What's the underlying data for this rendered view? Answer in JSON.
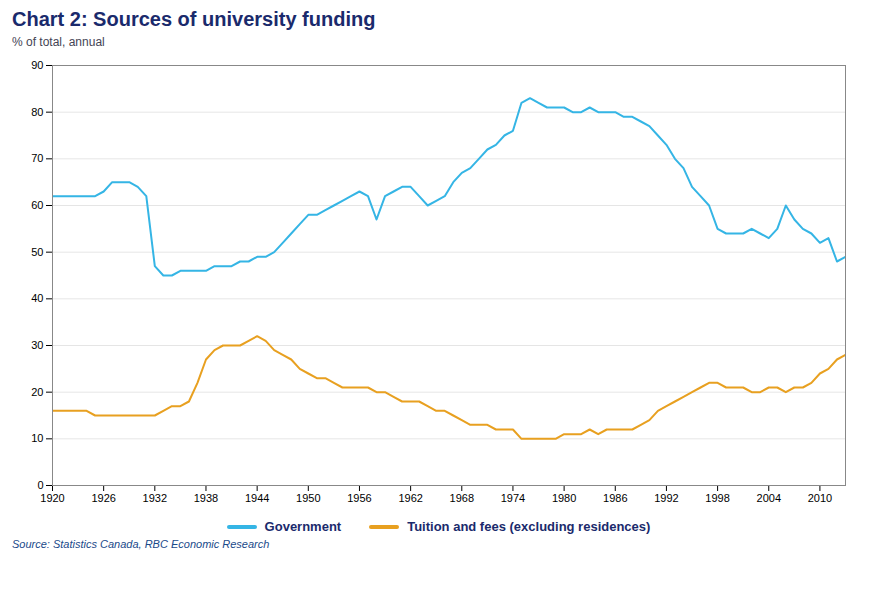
{
  "chart_data": {
    "type": "line",
    "title": "Chart 2: Sources of university funding",
    "subtitle": "% of total, annual",
    "source": "Source: Statistics Canada, RBC Economic Research",
    "x": [
      1920,
      1921,
      1922,
      1923,
      1924,
      1925,
      1926,
      1927,
      1928,
      1929,
      1930,
      1931,
      1932,
      1933,
      1934,
      1935,
      1936,
      1937,
      1938,
      1939,
      1940,
      1941,
      1942,
      1943,
      1944,
      1945,
      1946,
      1947,
      1948,
      1949,
      1950,
      1951,
      1952,
      1953,
      1954,
      1955,
      1956,
      1957,
      1958,
      1959,
      1960,
      1961,
      1962,
      1963,
      1964,
      1965,
      1966,
      1967,
      1968,
      1969,
      1970,
      1971,
      1972,
      1973,
      1974,
      1975,
      1976,
      1977,
      1978,
      1979,
      1980,
      1981,
      1982,
      1983,
      1984,
      1985,
      1986,
      1987,
      1988,
      1989,
      1990,
      1991,
      1992,
      1993,
      1994,
      1995,
      1996,
      1997,
      1998,
      1999,
      2000,
      2001,
      2002,
      2003,
      2004,
      2005,
      2006,
      2007,
      2008,
      2009,
      2010,
      2011,
      2012,
      2013
    ],
    "series": [
      {
        "name": "Government",
        "color": "#35b5e5",
        "values": [
          62,
          62,
          62,
          62,
          62,
          62,
          63,
          65,
          65,
          65,
          64,
          62,
          47,
          45,
          45,
          46,
          46,
          46,
          46,
          47,
          47,
          47,
          48,
          48,
          49,
          49,
          50,
          52,
          54,
          56,
          58,
          58,
          59,
          60,
          61,
          62,
          63,
          62,
          57,
          62,
          63,
          64,
          64,
          62,
          60,
          61,
          62,
          65,
          67,
          68,
          70,
          72,
          73,
          75,
          76,
          82,
          83,
          82,
          81,
          81,
          81,
          80,
          80,
          81,
          80,
          80,
          80,
          79,
          79,
          78,
          77,
          75,
          73,
          70,
          68,
          64,
          62,
          60,
          55,
          54,
          54,
          54,
          55,
          54,
          53,
          55,
          60,
          57,
          55,
          54,
          52,
          53,
          48,
          49
        ]
      },
      {
        "name": "Tuition and fees (excluding residences)",
        "color": "#e8a020",
        "values": [
          16,
          16,
          16,
          16,
          16,
          15,
          15,
          15,
          15,
          15,
          15,
          15,
          15,
          16,
          17,
          17,
          18,
          22,
          27,
          29,
          30,
          30,
          30,
          31,
          32,
          31,
          29,
          28,
          27,
          25,
          24,
          23,
          23,
          22,
          21,
          21,
          21,
          21,
          20,
          20,
          19,
          18,
          18,
          18,
          17,
          16,
          16,
          15,
          14,
          13,
          13,
          13,
          12,
          12,
          12,
          10,
          10,
          10,
          10,
          10,
          11,
          11,
          11,
          12,
          11,
          12,
          12,
          12,
          12,
          13,
          14,
          16,
          17,
          18,
          19,
          20,
          21,
          22,
          22,
          21,
          21,
          21,
          20,
          20,
          21,
          21,
          20,
          21,
          21,
          22,
          24,
          25,
          27,
          28
        ]
      }
    ],
    "xlim": [
      1920,
      2013
    ],
    "xticks": [
      1920,
      1926,
      1932,
      1938,
      1944,
      1950,
      1956,
      1962,
      1968,
      1974,
      1980,
      1986,
      1992,
      1998,
      2004,
      2010
    ],
    "ylim": [
      0,
      90
    ],
    "yticks": [
      0,
      10,
      20,
      30,
      40,
      50,
      60,
      70,
      80,
      90
    ],
    "grid": true,
    "legend": "bottom"
  }
}
